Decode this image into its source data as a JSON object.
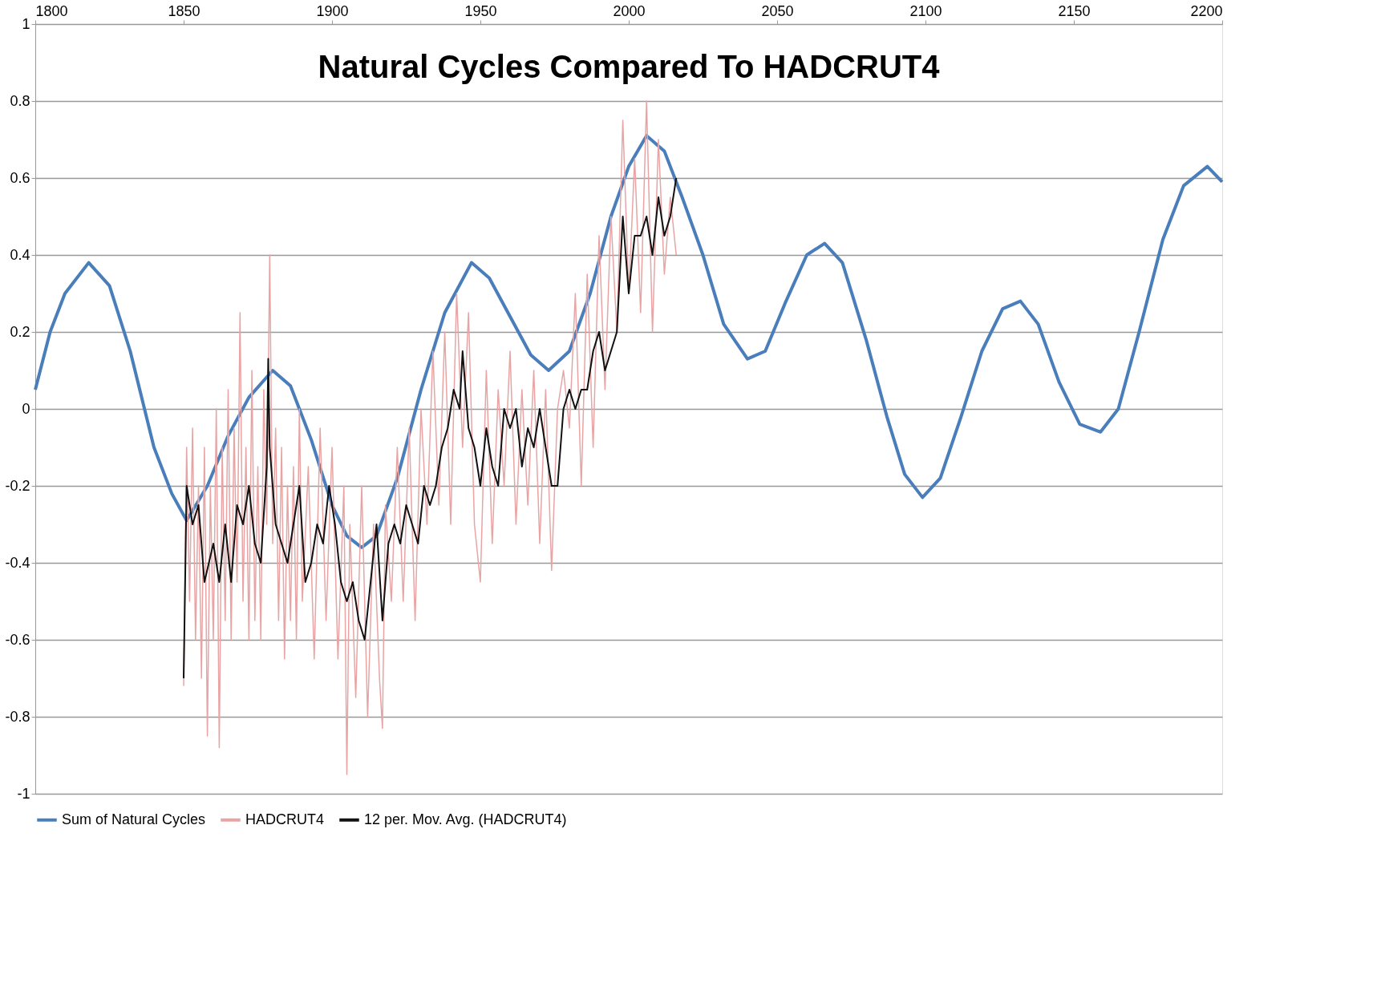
{
  "chart_data": {
    "type": "line",
    "title": "Natural Cycles Compared To HADCRUT4",
    "xlim": [
      1800,
      2200
    ],
    "xticks": [
      1800,
      1850,
      1900,
      1950,
      2000,
      2050,
      2100,
      2150,
      2200
    ],
    "ylim": [
      -1,
      1
    ],
    "yticks": [
      -1,
      -0.8,
      -0.6,
      -0.4,
      -0.2,
      0,
      0.2,
      0.4,
      0.6,
      0.8,
      1
    ],
    "grid": "y",
    "legend": "bottom",
    "series": [
      {
        "name": "Sum of Natural Cycles",
        "color": "#4a7ebb",
        "x": [
          1800,
          1805,
          1810,
          1818,
          1825,
          1832,
          1840,
          1846,
          1851,
          1858,
          1865,
          1872,
          1880,
          1886,
          1893,
          1900,
          1905,
          1910,
          1915,
          1922,
          1930,
          1938,
          1947,
          1953,
          1960,
          1967,
          1973,
          1980,
          1987,
          1994,
          2000,
          2006,
          2012,
          2018,
          2025,
          2032,
          2040,
          2046,
          2053,
          2060,
          2066,
          2072,
          2080,
          2087,
          2093,
          2099,
          2105,
          2112,
          2119,
          2126,
          2132,
          2138,
          2145,
          2152,
          2159,
          2165,
          2172,
          2180,
          2187,
          2195,
          2200
        ],
        "values": [
          0.05,
          0.2,
          0.3,
          0.38,
          0.32,
          0.15,
          -0.1,
          -0.22,
          -0.29,
          -0.2,
          -0.07,
          0.03,
          0.1,
          0.06,
          -0.08,
          -0.25,
          -0.33,
          -0.36,
          -0.33,
          -0.18,
          0.05,
          0.25,
          0.38,
          0.34,
          0.24,
          0.14,
          0.1,
          0.15,
          0.3,
          0.5,
          0.63,
          0.71,
          0.67,
          0.55,
          0.4,
          0.22,
          0.13,
          0.15,
          0.28,
          0.4,
          0.43,
          0.38,
          0.18,
          -0.02,
          -0.17,
          -0.23,
          -0.18,
          -0.02,
          0.15,
          0.26,
          0.28,
          0.22,
          0.07,
          -0.04,
          -0.06,
          0.0,
          0.2,
          0.44,
          0.58,
          0.63,
          0.59
        ]
      },
      {
        "name": "HADCRUT4",
        "color": "#e8a4a4",
        "x": [
          1850,
          1851,
          1852,
          1853,
          1854,
          1855,
          1856,
          1857,
          1858,
          1859,
          1860,
          1861,
          1862,
          1863,
          1864,
          1865,
          1866,
          1867,
          1868,
          1869,
          1870,
          1871,
          1872,
          1873,
          1874,
          1875,
          1876,
          1877,
          1878,
          1879,
          1880,
          1881,
          1882,
          1883,
          1884,
          1885,
          1886,
          1887,
          1888,
          1889,
          1890,
          1892,
          1894,
          1896,
          1898,
          1900,
          1902,
          1904,
          1905,
          1906,
          1908,
          1910,
          1912,
          1914,
          1916,
          1917,
          1918,
          1920,
          1922,
          1924,
          1926,
          1928,
          1930,
          1932,
          1934,
          1936,
          1938,
          1940,
          1942,
          1944,
          1946,
          1948,
          1950,
          1952,
          1954,
          1956,
          1958,
          1960,
          1962,
          1964,
          1966,
          1968,
          1970,
          1972,
          1974,
          1976,
          1978,
          1980,
          1982,
          1984,
          1986,
          1988,
          1990,
          1992,
          1994,
          1996,
          1998,
          2000,
          2002,
          2004,
          2006,
          2008,
          2010,
          2012,
          2014,
          2016
        ],
        "values": [
          -0.72,
          -0.1,
          -0.5,
          -0.05,
          -0.6,
          -0.2,
          -0.7,
          -0.1,
          -0.85,
          -0.2,
          -0.6,
          0.0,
          -0.88,
          -0.1,
          -0.55,
          0.05,
          -0.6,
          -0.05,
          -0.45,
          0.25,
          -0.5,
          -0.1,
          -0.6,
          0.1,
          -0.55,
          -0.15,
          -0.6,
          0.05,
          -0.3,
          0.4,
          -0.35,
          -0.05,
          -0.55,
          -0.1,
          -0.65,
          -0.2,
          -0.55,
          -0.15,
          -0.6,
          0.0,
          -0.5,
          -0.15,
          -0.65,
          -0.05,
          -0.55,
          -0.1,
          -0.65,
          -0.2,
          -0.95,
          -0.3,
          -0.75,
          -0.2,
          -0.8,
          -0.3,
          -0.7,
          -0.83,
          -0.25,
          -0.5,
          -0.1,
          -0.5,
          -0.05,
          -0.55,
          0.0,
          -0.3,
          0.15,
          -0.25,
          0.2,
          -0.3,
          0.3,
          -0.1,
          0.25,
          -0.3,
          -0.45,
          0.1,
          -0.35,
          0.05,
          -0.2,
          0.15,
          -0.3,
          0.05,
          -0.25,
          0.1,
          -0.35,
          0.05,
          -0.42,
          0.0,
          0.1,
          -0.05,
          0.3,
          -0.2,
          0.35,
          -0.1,
          0.45,
          0.05,
          0.5,
          0.2,
          0.75,
          0.3,
          0.65,
          0.25,
          0.8,
          0.2,
          0.7,
          0.35,
          0.55,
          0.4
        ]
      },
      {
        "name": "12 per. Mov. Avg. (HADCRUT4)",
        "color": "#111111",
        "x": [
          1850,
          1851,
          1853,
          1855,
          1857,
          1860,
          1862,
          1864,
          1866,
          1868,
          1870,
          1872,
          1874,
          1876,
          1878,
          1878.5,
          1879,
          1881,
          1883,
          1885,
          1887,
          1889,
          1891,
          1893,
          1895,
          1897,
          1899,
          1901,
          1903,
          1905,
          1907,
          1909,
          1911,
          1913,
          1915,
          1917,
          1919,
          1921,
          1923,
          1925,
          1927,
          1929,
          1931,
          1933,
          1935,
          1937,
          1939,
          1941,
          1943,
          1944,
          1946,
          1948,
          1950,
          1952,
          1954,
          1956,
          1958,
          1960,
          1962,
          1964,
          1966,
          1968,
          1970,
          1972,
          1974,
          1976,
          1978,
          1980,
          1982,
          1984,
          1986,
          1988,
          1990,
          1992,
          1994,
          1996,
          1998,
          2000,
          2002,
          2004,
          2006,
          2008,
          2010,
          2012,
          2014,
          2016
        ],
        "values": [
          -0.7,
          -0.2,
          -0.3,
          -0.25,
          -0.45,
          -0.35,
          -0.45,
          -0.3,
          -0.45,
          -0.25,
          -0.3,
          -0.2,
          -0.35,
          -0.4,
          -0.15,
          0.13,
          -0.1,
          -0.3,
          -0.35,
          -0.4,
          -0.3,
          -0.2,
          -0.45,
          -0.4,
          -0.3,
          -0.35,
          -0.2,
          -0.3,
          -0.45,
          -0.5,
          -0.45,
          -0.55,
          -0.6,
          -0.45,
          -0.3,
          -0.55,
          -0.35,
          -0.3,
          -0.35,
          -0.25,
          -0.3,
          -0.35,
          -0.2,
          -0.25,
          -0.2,
          -0.1,
          -0.05,
          0.05,
          0.0,
          0.15,
          -0.05,
          -0.1,
          -0.2,
          -0.05,
          -0.15,
          -0.2,
          0.0,
          -0.05,
          0.0,
          -0.15,
          -0.05,
          -0.1,
          0.0,
          -0.1,
          -0.2,
          -0.2,
          0.0,
          0.05,
          0.0,
          0.05,
          0.05,
          0.15,
          0.2,
          0.1,
          0.15,
          0.2,
          0.5,
          0.3,
          0.45,
          0.45,
          0.5,
          0.4,
          0.55,
          0.45,
          0.5,
          0.6
        ]
      }
    ]
  }
}
